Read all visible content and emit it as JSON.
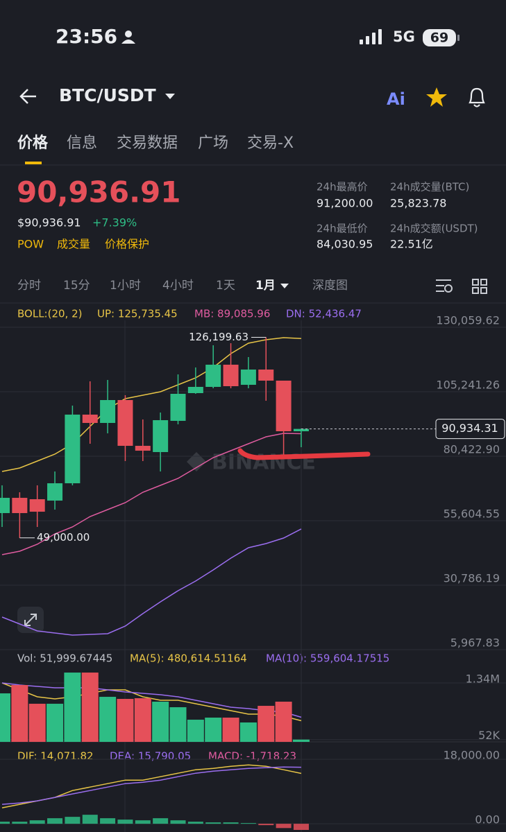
{
  "status_bar": {
    "time": "23:56",
    "network": "5G",
    "battery": "69"
  },
  "header": {
    "pair": "BTC/USDT",
    "ai": "Ai"
  },
  "tabs": [
    "价格",
    "信息",
    "交易数据",
    "广场",
    "交易-X"
  ],
  "price": {
    "last": "90,936.91",
    "usd": "$90,936.91",
    "change": "+7.39%",
    "tags": [
      "POW",
      "成交量",
      "价格保护"
    ]
  },
  "stats": [
    {
      "label": "24h最高价",
      "value": "91,200.00"
    },
    {
      "label": "24h成交量(BTC)",
      "value": "25,823.78"
    },
    {
      "label": "24h最低价",
      "value": "84,030.95"
    },
    {
      "label": "24h成交额(USDT)",
      "value": "22.51亿"
    }
  ],
  "intervals": [
    "分时",
    "15分",
    "1小时",
    "4小时",
    "1天",
    "1月",
    "深度图"
  ],
  "kline": {
    "legend": [
      "BOLL:(20, 2)",
      "UP: 125,735.45",
      "MB: 89,085.96",
      "DN: 52,436.47"
    ],
    "watermark": "BINANCE",
    "ylim": [
      5967.83,
      130059.62
    ],
    "yticks": [
      {
        "value": 130059.62,
        "label": "130,059.62"
      },
      {
        "value": 105241.26,
        "label": "105,241.26"
      },
      {
        "value": 80422.9,
        "label": "80,422.90"
      },
      {
        "value": 55604.55,
        "label": "55,604.55"
      },
      {
        "value": 30786.19,
        "label": "30,786.19"
      },
      {
        "value": 5967.83,
        "label": "5,967.83"
      }
    ],
    "open": [
      58533,
      64405,
      63871,
      63337,
      70010,
      96433,
      93230,
      102038,
      84423,
      82020,
      94031,
      104707,
      107109,
      115650,
      107910,
      113782,
      109511,
      90028
    ],
    "close": [
      64405,
      58533,
      59067,
      70010,
      96433,
      93230,
      102038,
      84423,
      82554,
      94298,
      104440,
      107109,
      115650,
      107376,
      113782,
      109511,
      90028,
      90934.31
    ],
    "high": [
      69209,
      66541,
      69209,
      74547,
      99903,
      109245,
      109778,
      103907,
      94565,
      97234,
      111914,
      114583,
      123123,
      123924,
      118586,
      126199.63,
      109511,
      91095
    ],
    "low": [
      53195,
      49000,
      53195,
      59868,
      69209,
      85223,
      89227,
      78551,
      78551,
      74547,
      92697,
      104440,
      106576,
      106576,
      106576,
      101771,
      80686,
      83889
    ],
    "high_label": "126,199.63",
    "low_label": "49,000.00",
    "last_price": {
      "value": 90934.31,
      "label": "90,934.31"
    },
    "series": [
      {
        "name": "UP",
        "color": "#e8c547",
        "values": [
          74547,
          75882,
          78551,
          81220,
          85223,
          91896,
          98568,
          102572,
          103906,
          105241,
          107910,
          110579,
          114583,
          119921,
          123924,
          125259,
          126059,
          125735.45
        ]
      },
      {
        "name": "MB",
        "color": "#e05ca0",
        "values": [
          42519,
          43854,
          46523,
          50526,
          53195,
          57199,
          59868,
          62537,
          66540,
          69209,
          71878,
          75882,
          79885,
          82554,
          85223,
          87892,
          89227,
          89085.96
        ]
      },
      {
        "name": "DN",
        "color": "#9b6ef0",
        "values": [
          18498,
          15829,
          13160,
          12360,
          11559,
          11826,
          12093,
          15029,
          19833,
          24370,
          28641,
          32377,
          36648,
          41185,
          45188,
          46790,
          48925,
          52436.47
        ]
      }
    ]
  },
  "volume": {
    "legend": [
      "Vol: 51,999.67445",
      "MA(5): 480,614.51164",
      "MA(10): 559,604.17515"
    ],
    "ylim": [
      0,
      1735000
    ],
    "yticks": [
      {
        "value": 1340000,
        "label": "1.34M"
      },
      {
        "value": 52000,
        "label": "52K"
      }
    ],
    "values": [
      1103550,
      1292730,
      867075,
      867075,
      1576500,
      1576500,
      1024725,
      977430,
      993195,
      914370,
      788250,
      504480,
      551775,
      551775,
      441420,
      819780,
      914370,
      51999.67445
    ],
    "series": [
      {
        "name": "MA(5)",
        "color": "#e8c547",
        "values": [
          1340025,
          1182375,
          1024725,
          977430,
          1024725,
          1103550,
          1182375,
          1182375,
          1024725,
          945900,
          945900,
          867075,
          788250,
          709425,
          630600,
          630600,
          583305,
          480614.51164
        ]
      },
      {
        "name": "MA(10)",
        "color": "#9b6ef0",
        "values": [
          1340025,
          1292730,
          1261200,
          1229670,
          1229670,
          1229670,
          1182375,
          1135080,
          1103550,
          1072020,
          1024725,
          945900,
          867075,
          788250,
          756720,
          709425,
          677895,
          559604.17515
        ]
      }
    ]
  },
  "macd": {
    "legend": [
      "DIF: 14,071.82",
      "DEA: 15,790.05",
      "MACD: -1,718.23"
    ],
    "ylim": [
      -2300,
      19000
    ],
    "yticks": [
      {
        "value": 18000,
        "label": "18,000.00"
      },
      {
        "value": 0,
        "label": "0.00"
      }
    ],
    "values": [
      581,
      581,
      968,
      1548,
      1935,
      2516,
      1548,
      1161,
      968,
      1548,
      968,
      581,
      387,
      387,
      194,
      -387,
      -1200,
      -1718.23
    ],
    "series": [
      {
        "name": "DIF",
        "color": "#e8c547",
        "values": [
          4451,
          5418,
          6386,
          7353,
          9288,
          10256,
          11223,
          12191,
          12191,
          13158,
          14126,
          15093,
          15480,
          16061,
          16448,
          16061,
          15093,
          14071.82
        ]
      },
      {
        "name": "DEA",
        "color": "#9b6ef0",
        "values": [
          5418,
          5805,
          6386,
          7353,
          8321,
          9288,
          10256,
          11223,
          11610,
          12191,
          13158,
          14126,
          14706,
          15093,
          15480,
          15674,
          15867,
          15790.05
        ]
      }
    ]
  }
}
